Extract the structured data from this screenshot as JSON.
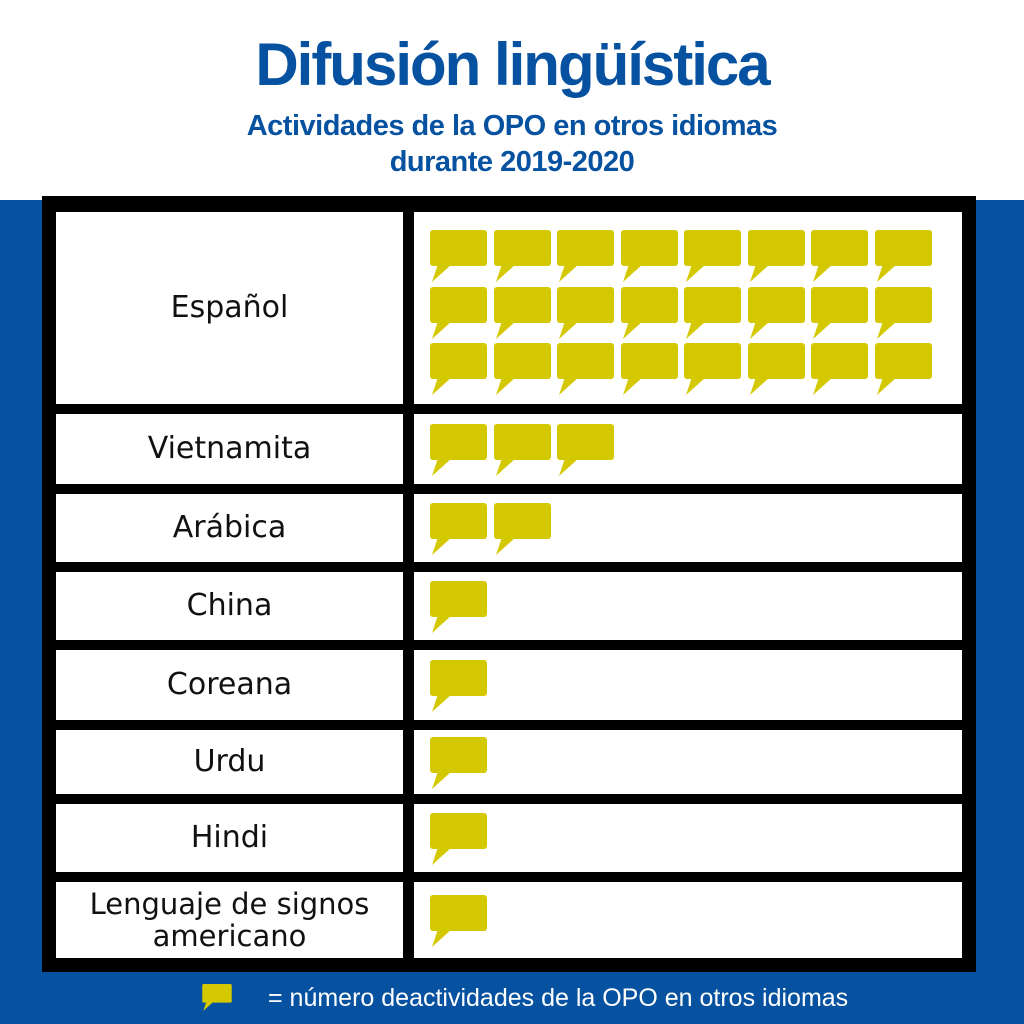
{
  "chart_data": {
    "type": "pictograph",
    "title": "Difusión lingüística",
    "subtitle": "Actividades de la OPO en otros idiomas durante 2019-2020",
    "categories": [
      "Español",
      "Vietnamita",
      "Arábica",
      "China",
      "Coreana",
      "Urdu",
      "Hindi",
      "Lenguaje de signos americano"
    ],
    "values": [
      24,
      3,
      2,
      1,
      1,
      1,
      1,
      1
    ],
    "icon": "speech-bubble-icon",
    "icon_color": "#d4c800",
    "legend": "= número deactividades de la OPO en otros idiomas"
  },
  "colors": {
    "brand_blue": "#0652a0",
    "icon": "#d4c800"
  }
}
